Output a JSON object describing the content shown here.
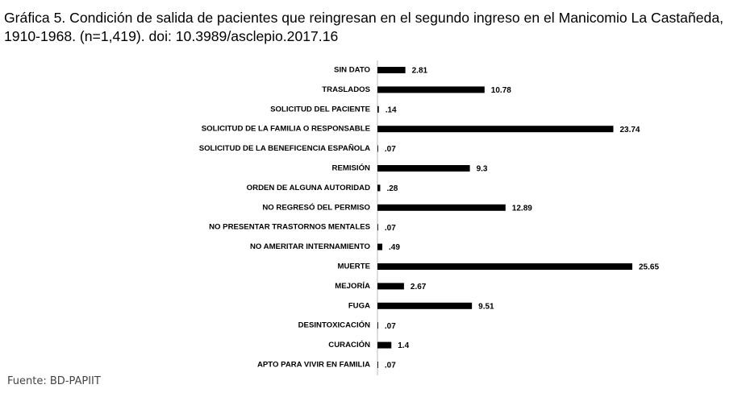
{
  "chart_data": {
    "type": "bar",
    "orientation": "horizontal",
    "title": "Gráfica 5. Condición de salida de pacientes que reingresan en el segundo ingreso en el Manicomio La Castañeda, 1910-1968. (n=1,419). doi: 10.3989/asclepio.2017.16",
    "source": "Fuente: BD-PAPIIT",
    "color": "#000000",
    "categories": [
      "SIN DATO",
      "TRASLADOS",
      "SOLICITUD DEL PACIENTE",
      "SOLICITUD DE LA FAMILIA O RESPONSABLE",
      "SOLICITUD DE LA BENEFICENCIA ESPAÑOLA",
      "REMISIÓN",
      "ORDEN DE ALGUNA AUTORIDAD",
      "NO REGRESÓ DEL PERMISO",
      "NO PRESENTAR TRASTORNOS MENTALES",
      "NO AMERITAR INTERNAMIENTO",
      "MUERTE",
      "MEJORÍA",
      "FUGA",
      "DESINTOXICACIÓN",
      "CURACIÓN",
      "APTO PARA VIVIR EN FAMILIA"
    ],
    "values": [
      2.81,
      10.78,
      0.14,
      23.74,
      0.07,
      9.3,
      0.28,
      12.89,
      0.07,
      0.49,
      25.65,
      2.67,
      9.51,
      0.07,
      1.4,
      0.07
    ],
    "value_labels": [
      "2.81",
      "10.78",
      ".14",
      "23.74",
      ".07",
      "9.3",
      ".28",
      "12.89",
      ".07",
      ".49",
      "25.65",
      "2.67",
      "9.51",
      ".07",
      "1.4",
      ".07"
    ]
  }
}
